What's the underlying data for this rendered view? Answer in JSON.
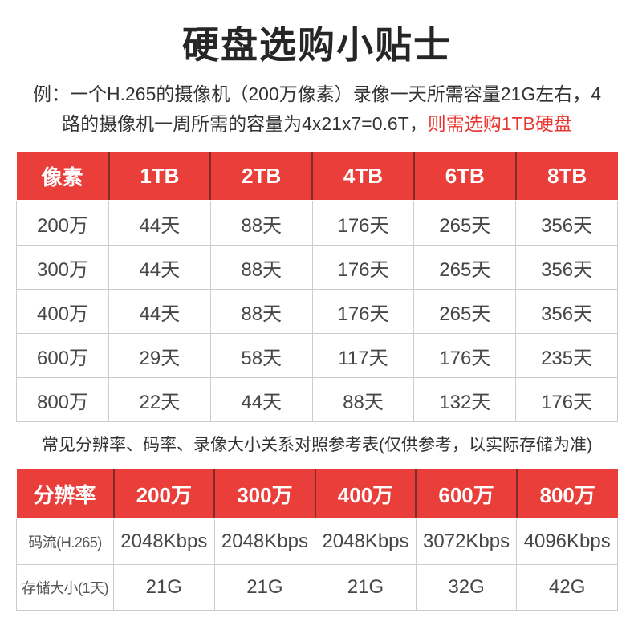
{
  "page": {
    "title": "硬盘选购小贴士",
    "example": {
      "line1": "例：一个H.265的摄像机（200万像素）录像一天所需容量21G左右，4",
      "line2_black": "路的摄像机一周所需的容量为4x21x7=0.6T，",
      "line2_red": "则需选购1TB硬盘"
    },
    "caption": "常见分辨率、码率、录像大小关系对照参考表(仅供参考，以实际存储为准)"
  },
  "colors": {
    "header_red": "#e93e3a",
    "highlight_red": "#e8352f",
    "cell_border": "#cccccc",
    "title_text": "#262626",
    "body_text": "#333333",
    "cell_text": "#474747"
  },
  "table1": {
    "headers": [
      "像素",
      "1TB",
      "2TB",
      "4TB",
      "6TB",
      "8TB"
    ],
    "rows": [
      [
        "200万",
        "44天",
        "88天",
        "176天",
        "265天",
        "356天"
      ],
      [
        "300万",
        "44天",
        "88天",
        "176天",
        "265天",
        "356天"
      ],
      [
        "400万",
        "44天",
        "88天",
        "176天",
        "265天",
        "356天"
      ],
      [
        "600万",
        "29天",
        "58天",
        "117天",
        "176天",
        "235天"
      ],
      [
        "800万",
        "22天",
        "44天",
        "88天",
        "132天",
        "176天"
      ]
    ]
  },
  "table2": {
    "headers": [
      "分辨率",
      "200万",
      "300万",
      "400万",
      "600万",
      "800万"
    ],
    "rows": [
      [
        "码流(H.265)",
        "2048Kbps",
        "2048Kbps",
        "2048Kbps",
        "3072Kbps",
        "4096Kbps"
      ],
      [
        "存储大小(1天)",
        "21G",
        "21G",
        "21G",
        "32G",
        "42G"
      ]
    ]
  }
}
